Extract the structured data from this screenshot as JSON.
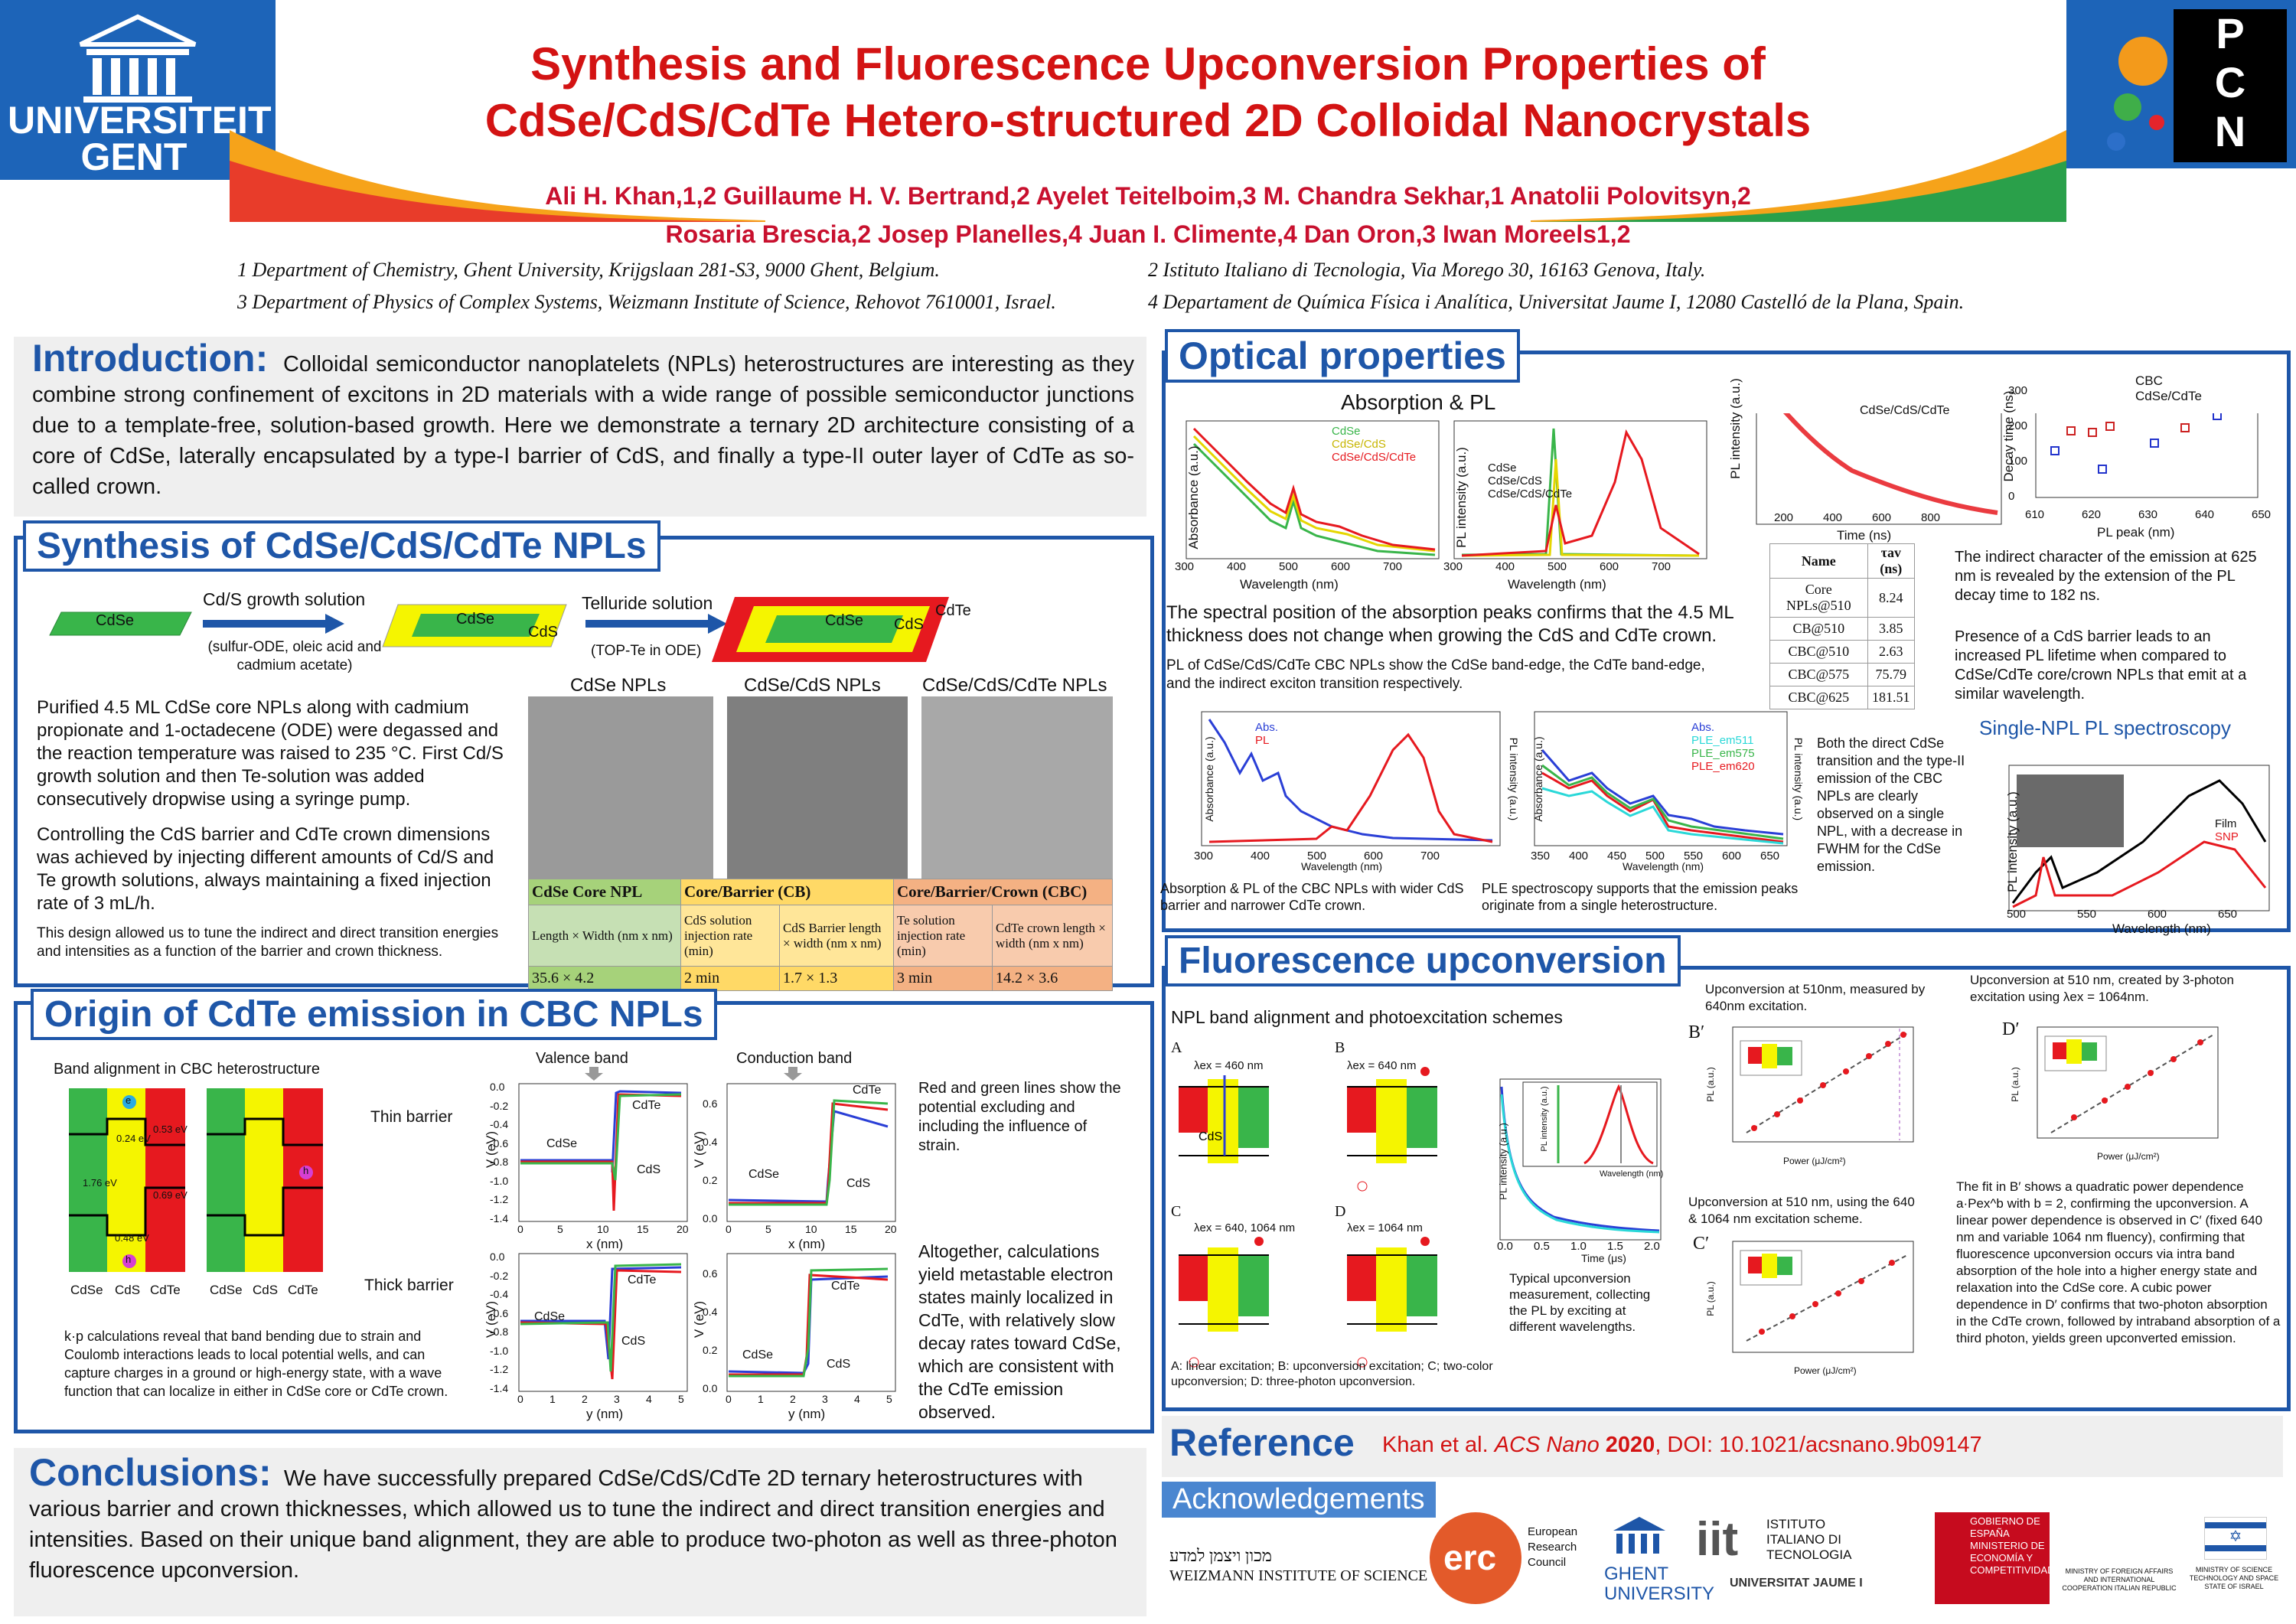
{
  "header": {
    "ugent_logo": [
      "UNIVERSITEIT",
      "GENT"
    ],
    "pcn_logo": [
      "P",
      "C",
      "N"
    ],
    "title_line1": "Synthesis and Fluorescence Upconversion Properties of",
    "title_line2": "CdSe/CdS/CdTe Hetero-structured 2D Colloidal Nanocrystals",
    "authors_line1": "Ali H. Khan,1,2 Guillaume H. V. Bertrand,2 Ayelet Teitelboim,3 M. Chandra Sekhar,1 Anatolii Polovitsyn,2",
    "authors_line2": "Rosaria Brescia,2 Josep Planelles,4 Juan I. Climente,4 Dan Oron,3 Iwan Moreels1,2",
    "affil1": "1 Department of Chemistry, Ghent University, Krijgslaan 281-S3, 9000 Ghent, Belgium.",
    "affil2": "2 Istituto Italiano di Tecnologia, Via Morego 30, 16163 Genova, Italy.",
    "affil3": "3 Department of Physics of Complex Systems, Weizmann Institute of Science, Rehovot 7610001, Israel.",
    "affil4": "4 Departament de Química Física i Analítica, Universitat Jaume I, 12080 Castelló de la Plana, Spain."
  },
  "intro": {
    "heading": "Introduction:",
    "text": "Colloidal semiconductor nanoplatelets (NPLs) heterostructures are interesting as they combine strong confinement of excitons in 2D materials with a wide range of possible semiconductor junctions due to a template-free, solution-based growth. Here we demonstrate a ternary 2D architecture consisting of a core of CdSe, laterally encapsulated by a type-I barrier of CdS, and finally a type-II outer layer of CdTe as so-called crown."
  },
  "synthesis": {
    "heading": "Synthesis of CdSe/CdS/CdTe NPLs",
    "scheme": {
      "cdse": "CdSe",
      "cds": "CdS",
      "cdte": "CdTe",
      "step1": "Cd/S growth solution",
      "step1_sub": "(sulfur-ODE, oleic acid and cadmium acetate)",
      "step2": "Telluride solution",
      "step2_sub": "(TOP-Te in ODE)"
    },
    "tem_labels": [
      "CdSe NPLs",
      "CdSe/CdS NPLs",
      "CdSe/CdS/CdTe NPLs"
    ],
    "p1": "Purified 4.5 ML CdSe core NPLs along with cadmium propionate and 1-octadecene (ODE) were degassed and the reaction temperature was raised to 235 °C. First Cd/S growth solution and then Te-solution was added consecutively dropwise using a syringe pump.",
    "p2": "Controlling the CdS barrier and CdTe crown dimensions was achieved by injecting different amounts of Cd/S and Te growth solutions, always maintaining a fixed injection rate of 3 mL/h.",
    "p3": "This design allowed us to tune the indirect and direct transition energies and intensities as a function of the barrier and crown thickness.",
    "table": {
      "h1": "CdSe Core NPL",
      "h2": "Core/Barrier (CB)",
      "h3": "Core/Barrier/Crown (CBC)",
      "s1": "Length × Width (nm x nm)",
      "s2": "CdS solution injection rate (min)",
      "s3": "CdS Barrier length × width (nm x nm)",
      "s4": "Te solution injection rate (min)",
      "s5": "CdTe crown length × width (nm x nm)",
      "v1": "35.6 × 4.2",
      "v2": "2 min",
      "v3": "1.7 × 1.3",
      "v4": "3 min",
      "v5": "14.2 × 3.6"
    }
  },
  "origin": {
    "heading": "Origin of CdTe emission in CBC NPLs",
    "band_title": "Band alignment in CBC heterostructure",
    "band_labels": {
      "cdse": "CdSe",
      "cds": "CdS",
      "cdte": "CdTe",
      "e1": "0.24 eV",
      "e2": "0.53 eV",
      "e3": "1.76 eV",
      "e4": "0.69 eV",
      "e5": "0.48 eV",
      "e_lbl": "e",
      "h_lbl": "h"
    },
    "thin": "Thin barrier",
    "thick": "Thick barrier",
    "valence": "Valence band",
    "conduction": "Conduction band",
    "ylabel": "V (eV)",
    "xlabel_thin": "x (nm)",
    "xlabel_thick": "y (nm)",
    "plot_labels": {
      "cdse": "CdSe",
      "cds": "CdS",
      "cdte": "CdTe"
    },
    "kp_text": "k·p calculations reveal that band bending due to strain and Coulomb interactions leads to local potential wells, and can capture charges in a ground or high-energy state, with a wave function that can localize in either in CdSe core or CdTe crown.",
    "lines_text": "Red and green lines show the potential excluding and including the influence of strain.",
    "calc_text": "Altogether, calculations yield metastable electron states mainly localized in CdTe, with relatively slow decay rates toward CdSe, which are consistent with the CdTe emission observed.",
    "ticks": {
      "val_y": [
        "0.0",
        "-0.2",
        "-0.4",
        "-0.6",
        "-0.8",
        "-1.0",
        "-1.2",
        "-1.4"
      ],
      "cond_y": [
        "0.6",
        "0.4",
        "0.2",
        "0.0"
      ],
      "x_thin": [
        "0",
        "5",
        "10",
        "15",
        "20"
      ],
      "x_thick": [
        "0",
        "1",
        "2",
        "3",
        "4",
        "5"
      ]
    }
  },
  "conclusions": {
    "heading": "Conclusions:",
    "text": "We have successfully prepared CdSe/CdS/CdTe 2D ternary heterostructures with various barrier and crown thicknesses, which allowed us to tune the indirect and direct transition energies and intensities. Based on their unique band alignment, they are able to produce two-photon as well as three-photon fluorescence upconversion."
  },
  "optical": {
    "heading": "Optical properties",
    "abs_title": "Absorption & PL",
    "legend_abs": [
      "CdSe",
      "CdSe/CdS",
      "CdSe/CdS/CdTe"
    ],
    "abs_ylabel": "Absorbance (a.u.)",
    "pl_ylabel": "PL intensity (a.u.)",
    "wl_xlabel": "Wavelength (nm)",
    "wl_ticks": [
      "300",
      "400",
      "500",
      "600",
      "700"
    ],
    "decay_legend": "CdSe/CdS/CdTe",
    "decay_ylabel": "PL intensity (a.u.)",
    "decay_xlabel": "Time (ns)",
    "decay_ticks": [
      "200",
      "400",
      "600",
      "800"
    ],
    "dt_legend": [
      "CBC",
      "CdSe/CdTe"
    ],
    "dt_ylabel": "Decay time (ns)",
    "dt_xlabel": "PL peak (nm)",
    "dt_xticks": [
      "610",
      "620",
      "630",
      "640",
      "650"
    ],
    "dt_yticks": [
      "300",
      "200",
      "100",
      "0"
    ],
    "spectral_text": "The spectral position of the absorption peaks confirms that the 4.5 ML thickness does not change when growing the CdS and CdTe crown.",
    "pl_text": "PL of CdSe/CdS/CdTe CBC NPLs show the CdSe band-edge, the CdTe band-edge, and the indirect exciton transition respectively.",
    "tau_table": {
      "h_name": "Name",
      "h_tau": "τav (ns)",
      "rows": [
        [
          "Core NPLs@510",
          "8.24"
        ],
        [
          "CB@510",
          "3.85"
        ],
        [
          "CBC@510",
          "2.63"
        ],
        [
          "CBC@575",
          "75.79"
        ],
        [
          "CBC@625",
          "181.51"
        ]
      ]
    },
    "indirect_text": "The indirect character of the emission at 625 nm is revealed by the extension of the PL decay time to 182 ns.",
    "barrier_text": "Presence of a CdS barrier leads to an increased PL lifetime when compared to CdSe/CdTe core/crown NPLs that emit at a similar wavelength.",
    "cbc_legend": [
      "Abs.",
      "PL"
    ],
    "ple_legend": [
      "Abs.",
      "PLE_em511",
      "PLE_em575",
      "PLE_em620"
    ],
    "ple_xticks": [
      "350",
      "400",
      "450",
      "500",
      "550",
      "600",
      "650"
    ],
    "cbc_caption": "Absorption & PL of the CBC NPLs with wider CdS barrier and narrower CdTe crown.",
    "ple_caption": "PLE spectroscopy supports that the emission peaks originate from a single heterostructure.",
    "direct_text": "Both the direct CdSe transition and the type-II emission of the CBC NPLs are clearly observed on a single NPL, with a decrease in FWHM for the CdSe emission.",
    "single_title": "Single-NPL PL spectroscopy",
    "single_legend": [
      "Film",
      "SNP"
    ],
    "single_ylabel": "PL intensity (a.u.)",
    "single_xlabel": "Wavelength (nm)",
    "single_xticks": [
      "500",
      "550",
      "600",
      "650"
    ]
  },
  "upconv": {
    "heading": "Fluorescence upconversion",
    "scheme_title": "NPL band alignment and photoexcitation schemes",
    "panel_A": "A",
    "panel_B": "B",
    "panel_C": "C",
    "panel_D": "D",
    "lambda_A": "λex = 460 nm",
    "lambda_B": "λex = 640 nm",
    "lambda_C": "λex = 640, 1064 nm",
    "lambda_D": "λex = 1064 nm",
    "scheme_caption": "A: linear excitation; B: upconversion excitation; C; two-color upconversion; D: three-photon upconversion.",
    "typical_text": "Typical upconversion measurement, collecting the PL by exciting at different wavelengths.",
    "inset_ylabel": "PL intensity (a.u.)",
    "inset_xlabel": "Wavelength (nm)",
    "time_ylabel": "PL intensity (a.u.)",
    "time_xlabel": "Time (μs)",
    "time_xticks": [
      "0.0",
      "0.5",
      "1.0",
      "1.5",
      "2.0"
    ],
    "up_b_text": "Upconversion at 510nm, measured by 640nm excitation.",
    "up_c_text": "Upconversion at 510 nm, using the 640 & 1064 nm excitation scheme.",
    "up_d_text": "Upconversion at 510 nm, created by 3-photon excitation using λex = 1064nm.",
    "label_B": "B′",
    "label_C": "C′",
    "label_D": "D′",
    "pl_axis": "PL (a.u.)",
    "power_axis": "Power (μJ/cm²)",
    "fit_text": "The fit in B′ shows a quadratic power dependence a·Pex^b with b = 2, confirming the upconversion. A linear power dependence is observed in C′ (fixed 640 nm and variable 1064 nm fluency), confirming that fluorescence upconversion occurs via intra band absorption of the hole into a higher energy state and relaxation into the CdSe core. A cubic power dependence in D′ confirms that two-photon absorption in the CdTe crown, followed by intraband absorption of a third photon, yields green upconverted emission."
  },
  "reference": {
    "heading": "Reference",
    "authors": "Khan et al.",
    "journal": "ACS Nano",
    "year": "2020",
    "doi": ", DOI: 10.1021/acsnano.9b09147"
  },
  "acknowledgements": {
    "heading": "Acknowledgements",
    "erc": "erc",
    "erc_text": "European Research Council",
    "ghent": "GHENT UNIVERSITY",
    "iit": "iit",
    "iit_text": "ISTITUTO ITALIANO DI TECNOLOGIA",
    "jaume": "UNIVERSITAT JAUME I",
    "spain": "GOBIERNO DE ESPAÑA   MINISTERIO DE ECONOMÍA Y COMPETITIVIDAD",
    "italy": "MINISTRY OF FOREIGN AFFAIRS AND INTERNATIONAL COOPERATION  ITALIAN REPUBLIC",
    "israel": "MINISTRY OF SCIENCE TECHNOLOGY AND SPACE  STATE OF ISRAEL",
    "weizmann": "WEIZMANN INSTITUTE OF SCIENCE",
    "weizmann_hebrew": "מכון ויצמן למדע"
  },
  "colors": {
    "title_red": "#d31313",
    "accent_blue": "#1e56a8",
    "cdse_green": "#39b54a",
    "cds_yellow": "#f5f500",
    "cdte_red": "#e6191f"
  }
}
